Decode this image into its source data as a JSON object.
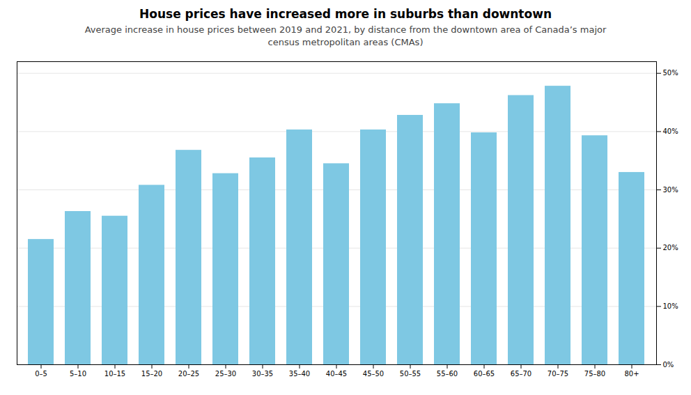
{
  "chart_data": {
    "type": "bar",
    "title": "House prices have increased more in suburbs than downtown",
    "subtitle": "Average increase in house prices between 2019 and 2021, by distance from the downtown area of Canada’s major\ncensus metropolitan areas (CMAs)",
    "categories": [
      "0–5",
      "5–10",
      "10–15",
      "15–20",
      "20–25",
      "25–30",
      "30–35",
      "35–40",
      "40–45",
      "45–50",
      "50–55",
      "55–60",
      "60–65",
      "65–70",
      "70–75",
      "75–80",
      "80+"
    ],
    "values": [
      0.215,
      0.263,
      0.255,
      0.308,
      0.368,
      0.328,
      0.355,
      0.403,
      0.345,
      0.403,
      0.428,
      0.448,
      0.398,
      0.462,
      0.478,
      0.393,
      0.33
    ],
    "color": "#7ec8e3",
    "ylim": [
      0,
      0.52
    ],
    "yticks": [
      {
        "value": 0.0,
        "label": "0%"
      },
      {
        "value": 0.1,
        "label": "10%"
      },
      {
        "value": 0.2,
        "label": "20%"
      },
      {
        "value": 0.3,
        "label": "30%"
      },
      {
        "value": 0.4,
        "label": "40%"
      },
      {
        "value": 0.5,
        "label": "50%"
      }
    ],
    "grid": true
  }
}
